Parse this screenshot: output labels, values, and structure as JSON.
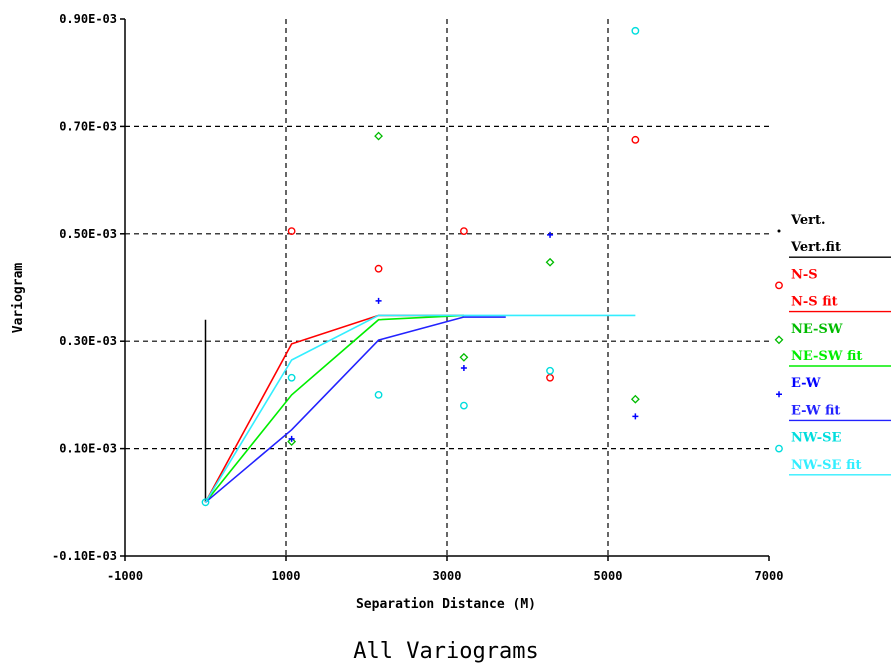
{
  "chart_data": {
    "type": "scatter",
    "title": "All Variograms",
    "xlabel": "Separation Distance (M)",
    "ylabel": "Variogram",
    "xlim": [
      -1000,
      7000
    ],
    "ylim": [
      -0.0001,
      0.0009
    ],
    "x_ticks": [
      -1000,
      1000,
      3000,
      5000,
      7000
    ],
    "x_tick_labels": [
      "-1000",
      "1000",
      "3000",
      "5000",
      "7000"
    ],
    "y_ticks": [
      -0.0001,
      0.0001,
      0.0003,
      0.0005,
      0.0007,
      0.0009
    ],
    "y_tick_labels": [
      "-0.10E-03",
      "0.10E-03",
      "0.30E-03",
      "0.50E-03",
      "0.70E-03",
      "0.90E-03"
    ],
    "grid": "dashed at major ticks",
    "legend_position": "right",
    "vertical_marker": {
      "x": 0,
      "y_top": 0.00034,
      "y_bottom": 0.0,
      "color": "#000000"
    },
    "series": [
      {
        "name": "Vert.",
        "kind": "points",
        "marker": "dot",
        "color": "#000000",
        "x": [],
        "y": []
      },
      {
        "name": "Vert.fit",
        "kind": "line",
        "color": "#000000",
        "x": [],
        "y": []
      },
      {
        "name": "N-S",
        "kind": "points",
        "marker": "circle",
        "color": "#ff0000",
        "x": [
          1070,
          2150,
          3210,
          4280,
          5340
        ],
        "y": [
          0.000505,
          0.000435,
          0.000505,
          0.000232,
          0.000675
        ]
      },
      {
        "name": "N-S fit",
        "kind": "line",
        "color": "#ff0000",
        "x": [
          0,
          1070,
          2150,
          3210
        ],
        "y": [
          0.0,
          0.000295,
          0.000348,
          0.000348
        ]
      },
      {
        "name": "NE-SW",
        "kind": "points",
        "marker": "diamond",
        "color": "#00bb00",
        "x": [
          1070,
          2150,
          3210,
          4280,
          5340
        ],
        "y": [
          0.000113,
          0.000682,
          0.00027,
          0.000447,
          0.000192
        ]
      },
      {
        "name": "NE-SW fit",
        "kind": "line",
        "color": "#00ee00",
        "x": [
          0,
          1070,
          2150,
          3210
        ],
        "y": [
          0.0,
          0.0002,
          0.00034,
          0.000348
        ]
      },
      {
        "name": "E-W",
        "kind": "points",
        "marker": "plus",
        "color": "#0000ff",
        "x": [
          1070,
          2150,
          3210,
          4280,
          5340
        ],
        "y": [
          0.000118,
          0.000375,
          0.00025,
          0.000498,
          0.00016
        ]
      },
      {
        "name": "E-W fit",
        "kind": "line",
        "color": "#2222ff",
        "x": [
          0,
          1070,
          2150,
          3210,
          3730
        ],
        "y": [
          0.0,
          0.000135,
          0.000302,
          0.000345,
          0.000345
        ]
      },
      {
        "name": "NW-SE",
        "kind": "points",
        "marker": "circle",
        "color": "#00dddd",
        "x": [
          0,
          1070,
          2150,
          3210,
          4280,
          5340
        ],
        "y": [
          0.0,
          0.000232,
          0.0002,
          0.00018,
          0.000245,
          0.000878
        ]
      },
      {
        "name": "NW-SE fit",
        "kind": "line",
        "color": "#33eeff",
        "x": [
          0,
          1070,
          2150,
          3210,
          5340
        ],
        "y": [
          0.0,
          0.000265,
          0.000348,
          0.000348,
          0.000348
        ]
      }
    ]
  }
}
